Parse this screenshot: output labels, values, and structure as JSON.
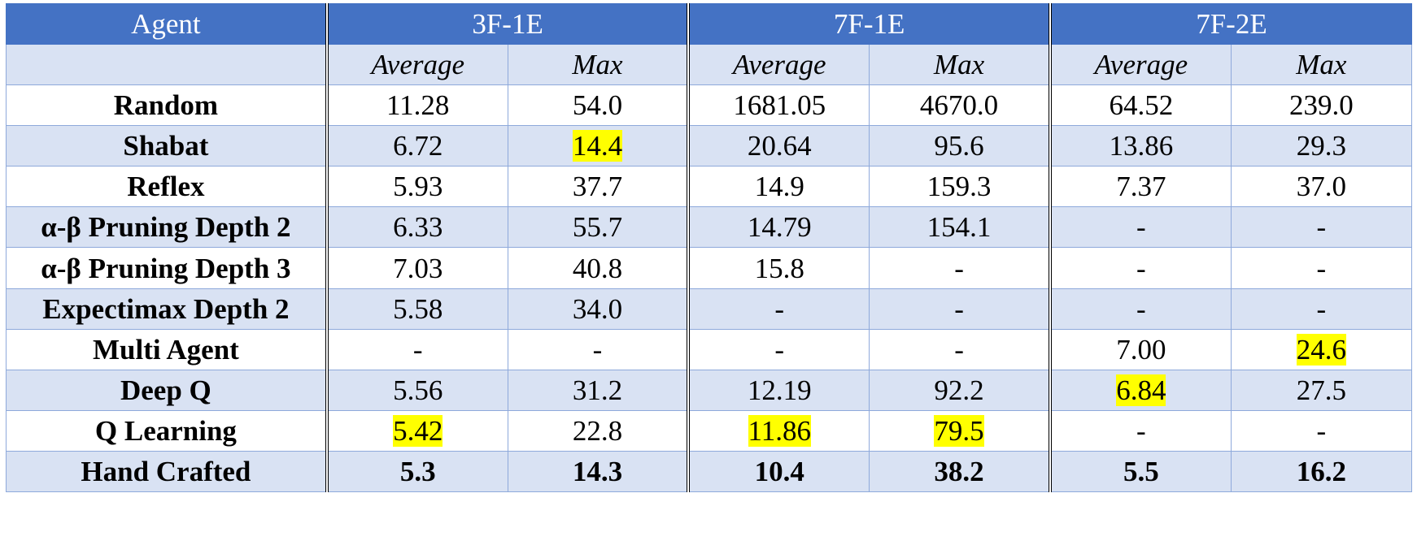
{
  "header": {
    "agent": "Agent",
    "groups": [
      "3F-1E",
      "7F-1E",
      "7F-2E"
    ],
    "sub": [
      "Average",
      "Max",
      "Average",
      "Max",
      "Average",
      "Max"
    ]
  },
  "rows": [
    {
      "agent": "Random",
      "values": [
        "11.28",
        "54.0",
        "1681.05",
        "4670.0",
        "64.52",
        "239.0"
      ]
    },
    {
      "agent": "Shabat",
      "values": [
        "6.72",
        "14.4",
        "20.64",
        "95.6",
        "13.86",
        "29.3"
      ]
    },
    {
      "agent": "Reflex",
      "values": [
        "5.93",
        "37.7",
        "14.9",
        "159.3",
        "7.37",
        "37.0"
      ]
    },
    {
      "agent": "α-β Pruning Depth 2",
      "values": [
        "6.33",
        "55.7",
        "14.79",
        "154.1",
        "-",
        "-"
      ]
    },
    {
      "agent": "α-β Pruning Depth 3",
      "values": [
        "7.03",
        "40.8",
        "15.8",
        "-",
        "-",
        "-"
      ]
    },
    {
      "agent": "Expectimax Depth 2",
      "values": [
        "5.58",
        "34.0",
        "-",
        "-",
        "-",
        "-"
      ]
    },
    {
      "agent": "Multi Agent",
      "values": [
        "-",
        "-",
        "-",
        "-",
        "7.00",
        "24.6"
      ]
    },
    {
      "agent": "Deep Q",
      "values": [
        "5.56",
        "31.2",
        "12.19",
        "92.2",
        "6.84",
        "27.5"
      ]
    },
    {
      "agent": "Q Learning",
      "values": [
        "5.42",
        "22.8",
        "11.86",
        "79.5",
        "-",
        "-"
      ]
    },
    {
      "agent": "Hand Crafted",
      "values": [
        "5.3",
        "14.3",
        "10.4",
        "38.2",
        "5.5",
        "16.2"
      ]
    }
  ],
  "highlights": [
    [
      1,
      1
    ],
    [
      6,
      5
    ],
    [
      7,
      4
    ],
    [
      8,
      0
    ],
    [
      8,
      2
    ],
    [
      8,
      3
    ]
  ],
  "colors": {
    "header_bg": "#4472c4",
    "band_bg": "#d9e2f3",
    "border": "#8ea9db",
    "highlight": "#ffff00"
  }
}
